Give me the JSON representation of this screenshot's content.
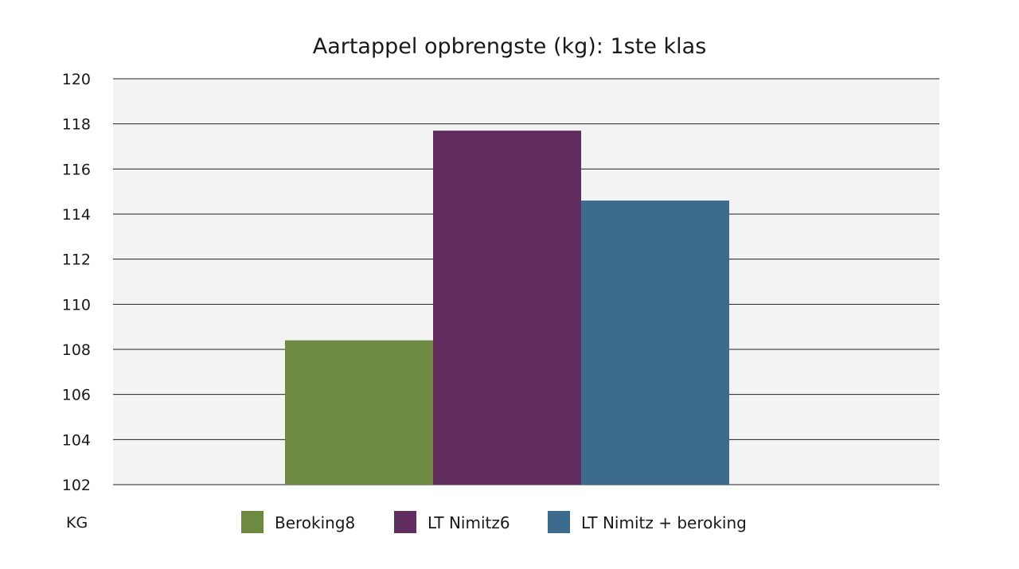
{
  "chart_data": {
    "type": "bar",
    "title": "Aartappel opbrengste (kg): 1ste klas",
    "unit_label": "KG",
    "ylim": [
      102,
      120
    ],
    "y_ticks": [
      {
        "value": 102,
        "label": "102"
      },
      {
        "value": 104,
        "label": "104"
      },
      {
        "value": 106,
        "label": "106"
      },
      {
        "value": 108,
        "label": "108"
      },
      {
        "value": 110,
        "label": "110"
      },
      {
        "value": 112,
        "label": "112"
      },
      {
        "value": 114,
        "label": "114"
      },
      {
        "value": 116,
        "label": "116"
      },
      {
        "value": 118,
        "label": "118"
      },
      {
        "value": 120,
        "label": "120"
      }
    ],
    "grid": true,
    "legend_position": "bottom",
    "series": [
      {
        "name": "Beroking8",
        "value": 108.4,
        "color": "#6e8a42"
      },
      {
        "name": "LT Nimitz6",
        "value": 117.7,
        "color": "#612d5e"
      },
      {
        "name": "LT Nimitz + beroking",
        "value": 114.6,
        "color": "#3c6b8e"
      }
    ]
  },
  "style": {
    "plot_background": "#f3f3f3",
    "grid_color": "#222222"
  }
}
